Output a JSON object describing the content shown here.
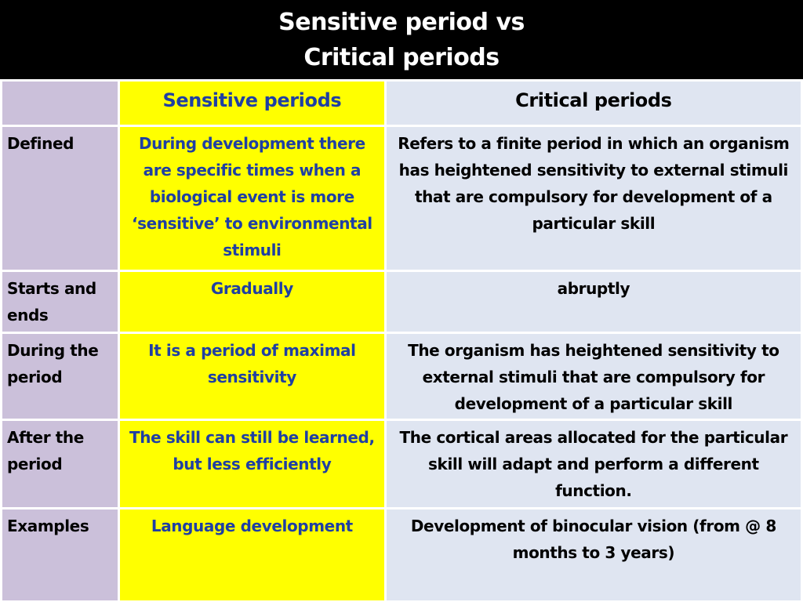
{
  "title": {
    "line1": "Sensitive period vs",
    "line2": "Critical periods"
  },
  "colors": {
    "title_bg": "#000000",
    "title_text": "#ffffff",
    "label_col_bg": "#cbc0da",
    "sensitive_col_bg": "#ffff00",
    "sensitive_text": "#1f3fa3",
    "critical_col_bg": "#dfe5f1",
    "critical_text": "#000000"
  },
  "table": {
    "headers": {
      "corner": "",
      "sensitive": "Sensitive periods",
      "critical": "Critical periods"
    },
    "rows": [
      {
        "label": "Defined",
        "sensitive": "During development there are specific times when a biological event is more ‘sensitive’ to environmental stimuli",
        "critical": "Refers to a finite period in which an organism has heightened sensitivity to external stimuli that are compulsory for development of a particular skill"
      },
      {
        "label": "Starts and ends",
        "sensitive": "Gradually",
        "critical": "abruptly"
      },
      {
        "label": "During the period",
        "sensitive": "It is a period of maximal sensitivity",
        "critical": "The organism has heightened sensitivity to external stimuli that are compulsory for development of a particular skill"
      },
      {
        "label": "After the period",
        "sensitive": "The skill can still be learned, but less efficiently",
        "critical": "The cortical areas allocated for the particular skill will adapt and perform a different function."
      },
      {
        "label": "Examples",
        "sensitive": "Language development",
        "critical": "Development of binocular vision (from @ 8 months to 3 years)"
      }
    ]
  }
}
